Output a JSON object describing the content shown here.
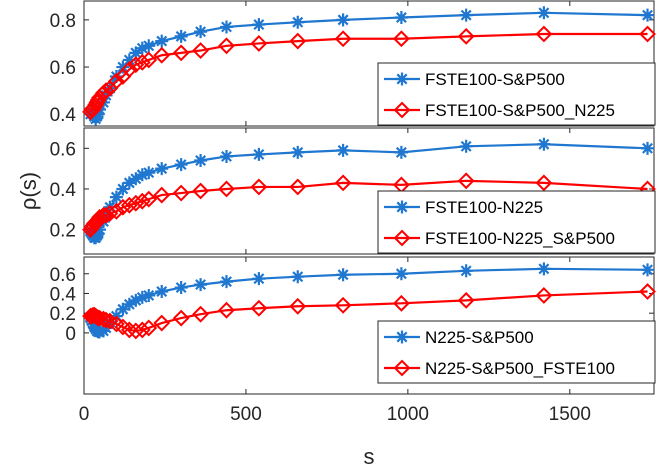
{
  "chart_data": [
    {
      "type": "line",
      "x": [
        20,
        24,
        28,
        32,
        36,
        40,
        44,
        48,
        60,
        68,
        80,
        100,
        120,
        140,
        160,
        180,
        200,
        240,
        300,
        360,
        440,
        540,
        660,
        800,
        980,
        1180,
        1420,
        1740
      ],
      "xlim": [
        0,
        1760
      ],
      "ylim": [
        0.35,
        0.88
      ],
      "yticks": [
        0.4,
        0.6,
        0.8
      ],
      "ytick_labels": [
        "0.4",
        "0.6",
        "0.8"
      ],
      "series": [
        {
          "name": "FSTE100-S&P500",
          "color": "#1f77d0",
          "marker": "asterisk",
          "values": [
            0.4,
            0.41,
            0.4,
            0.39,
            0.38,
            0.39,
            0.4,
            0.42,
            0.45,
            0.48,
            0.51,
            0.56,
            0.6,
            0.63,
            0.66,
            0.68,
            0.69,
            0.71,
            0.73,
            0.75,
            0.77,
            0.78,
            0.79,
            0.8,
            0.81,
            0.82,
            0.83,
            0.82
          ]
        },
        {
          "name": "FSTE100-S&P500_N225",
          "color": "#ff0000",
          "marker": "diamond",
          "values": [
            0.41,
            0.42,
            0.42,
            0.43,
            0.44,
            0.45,
            0.46,
            0.47,
            0.49,
            0.5,
            0.51,
            0.54,
            0.56,
            0.59,
            0.61,
            0.62,
            0.63,
            0.65,
            0.66,
            0.67,
            0.69,
            0.7,
            0.71,
            0.72,
            0.72,
            0.73,
            0.74,
            0.74
          ]
        }
      ],
      "legend": "bottom-right"
    },
    {
      "type": "line",
      "x": [
        20,
        24,
        28,
        32,
        36,
        40,
        44,
        48,
        60,
        68,
        80,
        100,
        120,
        140,
        160,
        180,
        200,
        240,
        300,
        360,
        440,
        540,
        660,
        800,
        980,
        1180,
        1420,
        1740
      ],
      "xlim": [
        0,
        1760
      ],
      "ylim": [
        0.08,
        0.7
      ],
      "yticks": [
        0.2,
        0.4,
        0.6
      ],
      "ytick_labels": [
        "0.2",
        "0.4",
        "0.6"
      ],
      "ylabel": "ρ(s)",
      "series": [
        {
          "name": "FSTE100-N225",
          "color": "#1f77d0",
          "marker": "asterisk",
          "values": [
            0.19,
            0.18,
            0.17,
            0.16,
            0.16,
            0.17,
            0.18,
            0.2,
            0.24,
            0.27,
            0.31,
            0.36,
            0.4,
            0.43,
            0.45,
            0.47,
            0.48,
            0.5,
            0.52,
            0.54,
            0.56,
            0.57,
            0.58,
            0.59,
            0.58,
            0.61,
            0.62,
            0.6
          ]
        },
        {
          "name": "FSTE100-N225_S&P500",
          "color": "#ff0000",
          "marker": "diamond",
          "values": [
            0.2,
            0.21,
            0.22,
            0.23,
            0.23,
            0.24,
            0.25,
            0.26,
            0.27,
            0.27,
            0.28,
            0.29,
            0.31,
            0.32,
            0.33,
            0.34,
            0.35,
            0.37,
            0.38,
            0.39,
            0.4,
            0.41,
            0.41,
            0.43,
            0.42,
            0.44,
            0.43,
            0.4
          ]
        }
      ],
      "legend": "bottom-right"
    },
    {
      "type": "line",
      "x": [
        20,
        24,
        28,
        32,
        36,
        40,
        44,
        48,
        60,
        68,
        80,
        100,
        120,
        140,
        160,
        180,
        200,
        240,
        300,
        360,
        440,
        540,
        660,
        800,
        980,
        1180,
        1420,
        1740
      ],
      "xlim": [
        0,
        1760
      ],
      "ylim": [
        -0.62,
        0.77
      ],
      "yticks": [
        0,
        0.2,
        0.4,
        0.6
      ],
      "ytick_labels": [
        "0",
        "0.2",
        "0.4",
        "0.6"
      ],
      "xticks": [
        0,
        500,
        1000,
        1500
      ],
      "xtick_labels": [
        "0",
        "500",
        "1000",
        "1500"
      ],
      "xlabel": "s",
      "series": [
        {
          "name": "N225-S&P500",
          "color": "#1f77d0",
          "marker": "asterisk",
          "values": [
            0.15,
            0.12,
            0.09,
            0.06,
            0.04,
            0.02,
            0.01,
            0.01,
            0.02,
            0.05,
            0.11,
            0.17,
            0.24,
            0.29,
            0.33,
            0.36,
            0.38,
            0.42,
            0.46,
            0.49,
            0.52,
            0.55,
            0.57,
            0.59,
            0.6,
            0.63,
            0.65,
            0.64
          ]
        },
        {
          "name": "N225-S&P500_FSTE100",
          "color": "#ff0000",
          "marker": "diamond",
          "values": [
            0.17,
            0.17,
            0.18,
            0.18,
            0.17,
            0.16,
            0.15,
            0.15,
            0.14,
            0.13,
            0.12,
            0.09,
            0.06,
            0.03,
            0.02,
            0.03,
            0.05,
            0.1,
            0.15,
            0.19,
            0.23,
            0.25,
            0.27,
            0.28,
            0.3,
            0.33,
            0.38,
            0.42
          ]
        }
      ],
      "legend": "bottom-right"
    }
  ]
}
